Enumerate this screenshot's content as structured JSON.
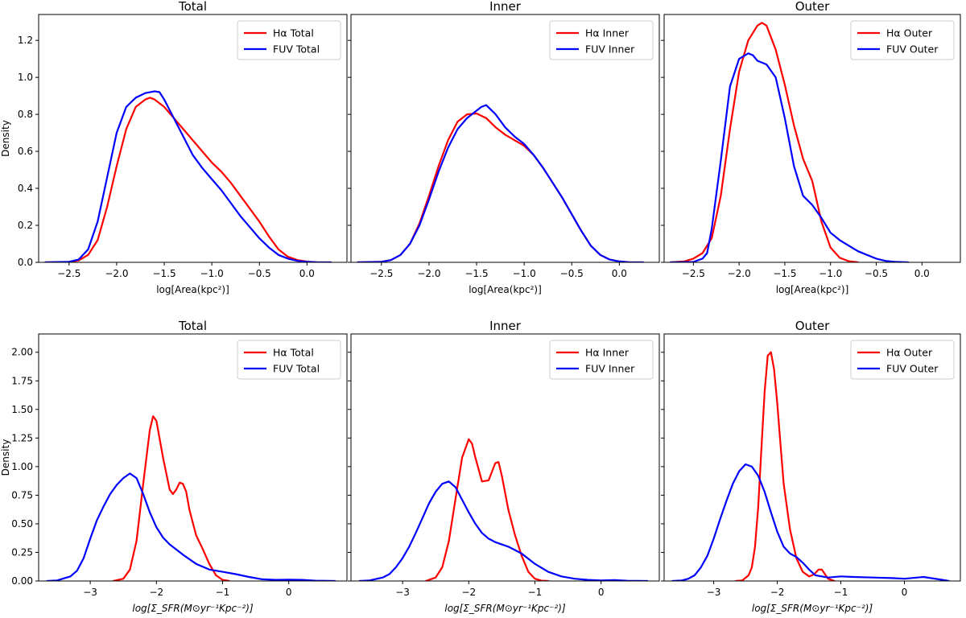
{
  "colors": {
    "halpha": "#ff0000",
    "fuv": "#0000ff"
  },
  "chart_data": [
    {
      "type": "line",
      "title": "Total",
      "xlabel": "log[Area(kpc²)]",
      "ylabel": "Density",
      "xlim": [
        -2.82,
        0.42
      ],
      "ylim": [
        0,
        1.34
      ],
      "xticks": [
        -2.5,
        -2.0,
        -1.5,
        -1.0,
        -0.5,
        0.0
      ],
      "xticklabels": [
        "−2.5",
        "−2.0",
        "−1.5",
        "−1.0",
        "−0.5",
        "0.0"
      ],
      "yticks": [
        0.0,
        0.2,
        0.4,
        0.6,
        0.8,
        1.0,
        1.2
      ],
      "yticklabels": [
        "0.0",
        "0.2",
        "0.4",
        "0.6",
        "0.8",
        "1.0",
        "1.2"
      ],
      "legend": "top-right",
      "series": [
        {
          "name": "Hα Total",
          "color": "halpha",
          "x": [
            -2.75,
            -2.5,
            -2.4,
            -2.3,
            -2.2,
            -2.1,
            -2.0,
            -1.9,
            -1.8,
            -1.7,
            -1.65,
            -1.6,
            -1.5,
            -1.4,
            -1.3,
            -1.2,
            -1.1,
            -1.0,
            -0.9,
            -0.8,
            -0.7,
            -0.6,
            -0.5,
            -0.4,
            -0.3,
            -0.2,
            -0.1,
            0.0,
            0.1,
            0.25
          ],
          "y": [
            0.0,
            0.002,
            0.01,
            0.04,
            0.12,
            0.3,
            0.52,
            0.72,
            0.84,
            0.88,
            0.89,
            0.88,
            0.84,
            0.78,
            0.72,
            0.66,
            0.6,
            0.54,
            0.49,
            0.43,
            0.36,
            0.29,
            0.22,
            0.14,
            0.07,
            0.03,
            0.012,
            0.004,
            0.001,
            0.0
          ]
        },
        {
          "name": "FUV Total",
          "color": "fuv",
          "x": [
            -2.75,
            -2.5,
            -2.4,
            -2.3,
            -2.2,
            -2.1,
            -2.0,
            -1.9,
            -1.8,
            -1.7,
            -1.6,
            -1.55,
            -1.5,
            -1.4,
            -1.3,
            -1.2,
            -1.1,
            -1.0,
            -0.9,
            -0.8,
            -0.7,
            -0.6,
            -0.5,
            -0.4,
            -0.3,
            -0.2,
            -0.1,
            0.0,
            0.1,
            0.25
          ],
          "y": [
            0.0,
            0.003,
            0.015,
            0.07,
            0.22,
            0.46,
            0.7,
            0.84,
            0.89,
            0.915,
            0.925,
            0.92,
            0.88,
            0.78,
            0.68,
            0.58,
            0.51,
            0.45,
            0.39,
            0.32,
            0.25,
            0.19,
            0.13,
            0.08,
            0.04,
            0.02,
            0.008,
            0.003,
            0.001,
            0.0
          ]
        }
      ]
    },
    {
      "type": "line",
      "title": "Inner",
      "xlabel": "log[Area(kpc²)]",
      "ylabel": "",
      "xlim": [
        -2.82,
        0.42
      ],
      "ylim": [
        0,
        1.34
      ],
      "xticks": [
        -2.5,
        -2.0,
        -1.5,
        -1.0,
        -0.5,
        0.0
      ],
      "xticklabels": [
        "−2.5",
        "−2.0",
        "−1.5",
        "−1.0",
        "−0.5",
        "0.0"
      ],
      "legend": "top-right",
      "series": [
        {
          "name": "Hα Inner",
          "color": "halpha",
          "x": [
            -2.75,
            -2.5,
            -2.4,
            -2.3,
            -2.2,
            -2.1,
            -2.0,
            -1.9,
            -1.8,
            -1.7,
            -1.6,
            -1.5,
            -1.4,
            -1.3,
            -1.2,
            -1.1,
            -1.0,
            -0.9,
            -0.8,
            -0.7,
            -0.6,
            -0.5,
            -0.4,
            -0.3,
            -0.2,
            -0.1,
            0.0,
            0.1,
            0.25
          ],
          "y": [
            0.0,
            0.003,
            0.012,
            0.04,
            0.1,
            0.21,
            0.36,
            0.52,
            0.66,
            0.76,
            0.8,
            0.805,
            0.78,
            0.73,
            0.69,
            0.66,
            0.63,
            0.58,
            0.51,
            0.43,
            0.35,
            0.26,
            0.17,
            0.09,
            0.04,
            0.015,
            0.005,
            0.001,
            0.0
          ]
        },
        {
          "name": "FUV Inner",
          "color": "fuv",
          "x": [
            -2.75,
            -2.5,
            -2.4,
            -2.3,
            -2.2,
            -2.1,
            -2.0,
            -1.9,
            -1.8,
            -1.7,
            -1.6,
            -1.5,
            -1.45,
            -1.4,
            -1.3,
            -1.2,
            -1.1,
            -1.0,
            -0.9,
            -0.8,
            -0.7,
            -0.6,
            -0.5,
            -0.4,
            -0.3,
            -0.2,
            -0.1,
            0.0,
            0.1,
            0.25
          ],
          "y": [
            0.0,
            0.003,
            0.012,
            0.04,
            0.1,
            0.2,
            0.34,
            0.49,
            0.62,
            0.72,
            0.78,
            0.82,
            0.84,
            0.85,
            0.8,
            0.73,
            0.68,
            0.64,
            0.58,
            0.51,
            0.43,
            0.35,
            0.26,
            0.17,
            0.09,
            0.04,
            0.015,
            0.005,
            0.001,
            0.0
          ]
        }
      ]
    },
    {
      "type": "line",
      "title": "Outer",
      "xlabel": "log[Area(kpc²)]",
      "ylabel": "",
      "xlim": [
        -2.82,
        0.42
      ],
      "ylim": [
        0,
        1.34
      ],
      "xticks": [
        -2.5,
        -2.0,
        -1.5,
        -1.0,
        -0.5,
        0.0
      ],
      "xticklabels": [
        "−2.5",
        "−2.0",
        "−1.5",
        "−1.0",
        "−0.5",
        "0.0"
      ],
      "legend": "top-right",
      "series": [
        {
          "name": "Hα Outer",
          "color": "halpha",
          "x": [
            -2.75,
            -2.6,
            -2.5,
            -2.4,
            -2.3,
            -2.2,
            -2.1,
            -2.0,
            -1.9,
            -1.8,
            -1.75,
            -1.7,
            -1.6,
            -1.5,
            -1.4,
            -1.3,
            -1.2,
            -1.15,
            -1.1,
            -1.0,
            -0.9,
            -0.8,
            -0.7
          ],
          "y": [
            0.0,
            0.005,
            0.02,
            0.05,
            0.13,
            0.36,
            0.72,
            1.03,
            1.2,
            1.28,
            1.295,
            1.28,
            1.15,
            0.96,
            0.74,
            0.56,
            0.44,
            0.33,
            0.22,
            0.08,
            0.025,
            0.006,
            0.0
          ]
        },
        {
          "name": "FUV Outer",
          "color": "fuv",
          "x": [
            -2.75,
            -2.5,
            -2.4,
            -2.35,
            -2.3,
            -2.2,
            -2.1,
            -2.0,
            -1.9,
            -1.85,
            -1.8,
            -1.7,
            -1.6,
            -1.5,
            -1.4,
            -1.3,
            -1.2,
            -1.1,
            -1.0,
            -0.9,
            -0.8,
            -0.7,
            -0.6,
            -0.5,
            -0.4,
            -0.3,
            -0.15
          ],
          "y": [
            0.0,
            0.002,
            0.02,
            0.05,
            0.18,
            0.55,
            0.95,
            1.1,
            1.13,
            1.12,
            1.09,
            1.07,
            1.0,
            0.78,
            0.52,
            0.36,
            0.31,
            0.24,
            0.16,
            0.12,
            0.09,
            0.06,
            0.04,
            0.02,
            0.008,
            0.003,
            0.0
          ]
        }
      ]
    },
    {
      "type": "line",
      "title": "Total",
      "xlabel": "log[Σ_SFR(M⊙yr⁻¹Kpc⁻²)]",
      "ylabel": "Density",
      "xlim": [
        -3.78,
        0.88
      ],
      "ylim": [
        0,
        2.16
      ],
      "xticks": [
        -3,
        -2,
        -1,
        0
      ],
      "xticklabels": [
        "−3",
        "−2",
        "−1",
        "0"
      ],
      "yticks": [
        0.0,
        0.25,
        0.5,
        0.75,
        1.0,
        1.25,
        1.5,
        1.75,
        2.0
      ],
      "yticklabels": [
        "0.00",
        "0.25",
        "0.50",
        "0.75",
        "1.00",
        "1.25",
        "1.50",
        "1.75",
        "2.00"
      ],
      "legend": "top-right",
      "series": [
        {
          "name": "Hα Total",
          "color": "halpha",
          "x": [
            -2.65,
            -2.5,
            -2.4,
            -2.3,
            -2.2,
            -2.1,
            -2.05,
            -2.0,
            -1.9,
            -1.8,
            -1.75,
            -1.7,
            -1.65,
            -1.6,
            -1.55,
            -1.5,
            -1.4,
            -1.3,
            -1.2,
            -1.1,
            -1.0,
            -0.9
          ],
          "y": [
            0.0,
            0.02,
            0.1,
            0.35,
            0.85,
            1.32,
            1.44,
            1.4,
            1.08,
            0.8,
            0.76,
            0.8,
            0.86,
            0.85,
            0.78,
            0.62,
            0.4,
            0.28,
            0.15,
            0.05,
            0.01,
            0.0
          ]
        },
        {
          "name": "FUV Total",
          "color": "fuv",
          "x": [
            -3.65,
            -3.5,
            -3.3,
            -3.2,
            -3.1,
            -3.0,
            -2.9,
            -2.8,
            -2.7,
            -2.6,
            -2.5,
            -2.4,
            -2.3,
            -2.2,
            -2.1,
            -2.0,
            -1.9,
            -1.8,
            -1.6,
            -1.4,
            -1.2,
            -1.0,
            -0.8,
            -0.6,
            -0.4,
            -0.2,
            0.0,
            0.2,
            0.4,
            0.7
          ],
          "y": [
            0.0,
            0.005,
            0.04,
            0.09,
            0.2,
            0.37,
            0.53,
            0.65,
            0.76,
            0.84,
            0.9,
            0.94,
            0.9,
            0.76,
            0.6,
            0.47,
            0.38,
            0.32,
            0.23,
            0.15,
            0.1,
            0.08,
            0.06,
            0.035,
            0.015,
            0.01,
            0.012,
            0.01,
            0.003,
            0.0
          ]
        }
      ]
    },
    {
      "type": "line",
      "title": "Inner",
      "xlabel": "log[Σ_SFR(M⊙yr⁻¹Kpc⁻²)]",
      "ylabel": "",
      "xlim": [
        -3.78,
        0.88
      ],
      "ylim": [
        0,
        2.16
      ],
      "xticks": [
        -3,
        -2,
        -1,
        0
      ],
      "xticklabels": [
        "−3",
        "−2",
        "−1",
        "0"
      ],
      "legend": "top-right",
      "series": [
        {
          "name": "Hα Inner",
          "color": "halpha",
          "x": [
            -2.65,
            -2.5,
            -2.4,
            -2.3,
            -2.2,
            -2.1,
            -2.0,
            -1.95,
            -1.9,
            -1.8,
            -1.7,
            -1.6,
            -1.55,
            -1.5,
            -1.4,
            -1.3,
            -1.2,
            -1.1,
            -1.0,
            -0.9,
            -0.8
          ],
          "y": [
            0.0,
            0.03,
            0.12,
            0.35,
            0.72,
            1.08,
            1.24,
            1.2,
            1.08,
            0.87,
            0.88,
            1.03,
            1.04,
            0.92,
            0.62,
            0.4,
            0.22,
            0.08,
            0.02,
            0.003,
            0.0
          ]
        },
        {
          "name": "FUV Inner",
          "color": "fuv",
          "x": [
            -3.65,
            -3.5,
            -3.3,
            -3.2,
            -3.1,
            -3.0,
            -2.9,
            -2.8,
            -2.7,
            -2.6,
            -2.5,
            -2.4,
            -2.3,
            -2.2,
            -2.1,
            -2.0,
            -1.9,
            -1.8,
            -1.7,
            -1.6,
            -1.4,
            -1.2,
            -1.0,
            -0.8,
            -0.6,
            -0.4,
            -0.2,
            0.0,
            0.2,
            0.4,
            0.7
          ],
          "y": [
            0.0,
            0.005,
            0.03,
            0.06,
            0.12,
            0.2,
            0.3,
            0.42,
            0.55,
            0.68,
            0.78,
            0.85,
            0.87,
            0.82,
            0.71,
            0.6,
            0.5,
            0.42,
            0.37,
            0.34,
            0.3,
            0.24,
            0.15,
            0.08,
            0.04,
            0.02,
            0.01,
            0.005,
            0.008,
            0.002,
            0.0
          ]
        }
      ]
    },
    {
      "type": "line",
      "title": "Outer",
      "xlabel": "log[Σ_SFR(M⊙yr⁻¹Kpc⁻²)]",
      "ylabel": "",
      "xlim": [
        -3.78,
        0.88
      ],
      "ylim": [
        0,
        2.16
      ],
      "xticks": [
        -3,
        -2,
        -1,
        0
      ],
      "xticklabels": [
        "−3",
        "−2",
        "−1",
        "0"
      ],
      "legend": "top-right",
      "series": [
        {
          "name": "Hα Outer",
          "color": "halpha",
          "x": [
            -2.65,
            -2.55,
            -2.45,
            -2.4,
            -2.35,
            -2.3,
            -2.25,
            -2.2,
            -2.15,
            -2.1,
            -2.05,
            -2.0,
            -1.95,
            -1.9,
            -1.8,
            -1.7,
            -1.6,
            -1.5,
            -1.45,
            -1.4,
            -1.35,
            -1.3,
            -1.25,
            -1.2,
            -1.1
          ],
          "y": [
            0.0,
            0.005,
            0.05,
            0.12,
            0.3,
            0.65,
            1.15,
            1.65,
            1.97,
            2.0,
            1.85,
            1.55,
            1.2,
            0.85,
            0.45,
            0.2,
            0.08,
            0.04,
            0.05,
            0.07,
            0.1,
            0.1,
            0.06,
            0.02,
            0.0
          ]
        },
        {
          "name": "FUV Outer",
          "color": "fuv",
          "x": [
            -3.65,
            -3.5,
            -3.4,
            -3.3,
            -3.2,
            -3.1,
            -3.0,
            -2.9,
            -2.8,
            -2.7,
            -2.6,
            -2.5,
            -2.4,
            -2.3,
            -2.2,
            -2.1,
            -2.0,
            -1.9,
            -1.8,
            -1.7,
            -1.6,
            -1.5,
            -1.4,
            -1.2,
            -1.0,
            -0.8,
            -0.5,
            -0.2,
            0.0,
            0.3,
            0.6,
            0.7
          ],
          "y": [
            0.0,
            0.005,
            0.02,
            0.05,
            0.12,
            0.22,
            0.37,
            0.54,
            0.7,
            0.85,
            0.96,
            1.02,
            1.0,
            0.92,
            0.78,
            0.6,
            0.43,
            0.3,
            0.24,
            0.21,
            0.16,
            0.1,
            0.05,
            0.03,
            0.04,
            0.035,
            0.03,
            0.025,
            0.02,
            0.035,
            0.01,
            0.0
          ]
        }
      ]
    }
  ]
}
